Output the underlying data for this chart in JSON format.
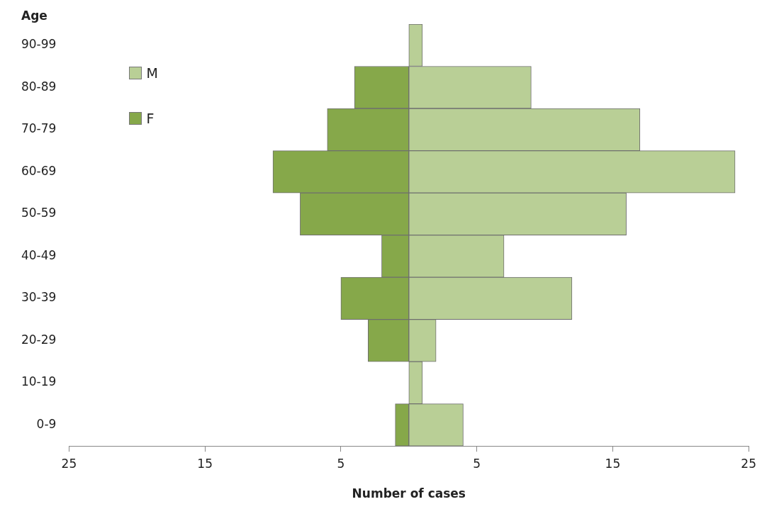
{
  "chart_data": {
    "type": "bar",
    "orientation": "horizontal",
    "stacked": true,
    "ylabel": "Age",
    "xlabel": "Number of cases",
    "categories": [
      "90-99",
      "80-89",
      "70-79",
      "60-69",
      "50-59",
      "40-49",
      "30-39",
      "20-29",
      "10-19",
      "0-9"
    ],
    "series": [
      {
        "name": "M",
        "color": "#b9cf96",
        "values": [
          1,
          9,
          17,
          24,
          16,
          7,
          12,
          2,
          1,
          4
        ]
      },
      {
        "name": "F",
        "color": "#86a84a",
        "values": [
          0,
          -4,
          -6,
          -10,
          -8,
          -2,
          -5,
          -3,
          0,
          -1
        ]
      }
    ],
    "xlim": [
      -25,
      25
    ],
    "xticks": [
      {
        "value": -25,
        "label": "25"
      },
      {
        "value": -15,
        "label": "15"
      },
      {
        "value": -5,
        "label": "5"
      },
      {
        "value": 5,
        "label": "5"
      },
      {
        "value": 15,
        "label": "15"
      },
      {
        "value": 25,
        "label": "25"
      }
    ],
    "grid": false,
    "legend": "top left"
  }
}
